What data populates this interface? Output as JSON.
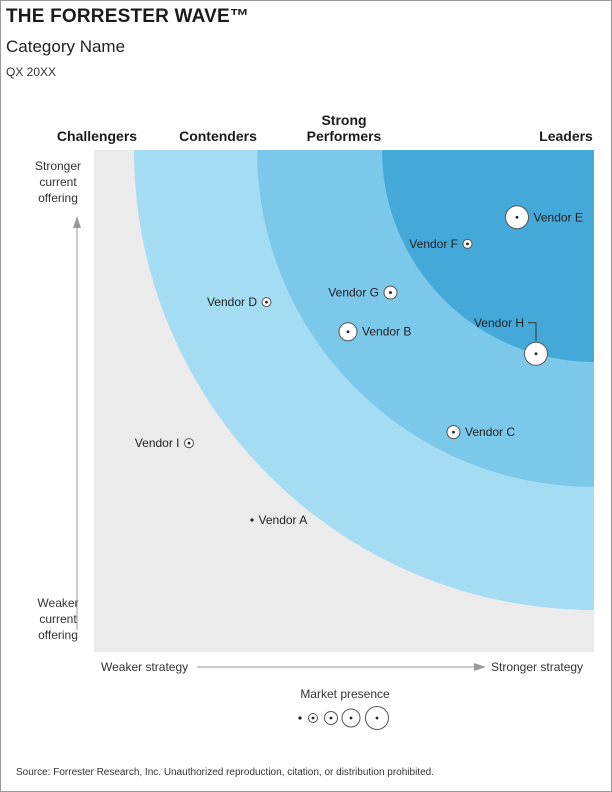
{
  "header": {
    "brand": "THE FORRESTER WAVE™",
    "category": "Category Name",
    "period": "QX 20XX"
  },
  "categories": {
    "challengers": "Challengers",
    "contenders": "Contenders",
    "strong_performers_line1": "Strong",
    "strong_performers_line2": "Performers",
    "leaders": "Leaders"
  },
  "axes": {
    "y_top": [
      "Stronger",
      "current",
      "offering"
    ],
    "y_bottom": [
      "Weaker",
      "current",
      "offering"
    ],
    "x_left": "Weaker strategy",
    "x_right": "Stronger strategy"
  },
  "legend": {
    "title": "Market presence",
    "levels": [
      1,
      2,
      3,
      4,
      5
    ]
  },
  "source": "Source: Forrester Research, Inc. Unauthorized reproduction, citation, or distribution prohibited.",
  "colors": {
    "plot_bg": "#ebebeb",
    "contenders": "#a3dcf3",
    "strong_performers": "#7cc8eb",
    "leaders": "#44a8d8",
    "axis": "#9a9a9a"
  },
  "chart_data": {
    "type": "scatter",
    "xlabel": "Strategy",
    "ylabel": "Current offering",
    "xlim": [
      0,
      100
    ],
    "ylim": [
      0,
      100
    ],
    "size_label": "Market presence",
    "points": [
      {
        "name": "Vendor E",
        "x": 84.6,
        "y": 86.6,
        "size": 5
      },
      {
        "name": "Vendor F",
        "x": 74.7,
        "y": 81.3,
        "size": 2
      },
      {
        "name": "Vendor G",
        "x": 59.3,
        "y": 71.6,
        "size": 3
      },
      {
        "name": "Vendor H",
        "x": 88.4,
        "y": 59.4,
        "size": 5
      },
      {
        "name": "Vendor B",
        "x": 50.8,
        "y": 63.8,
        "size": 4
      },
      {
        "name": "Vendor D",
        "x": 34.5,
        "y": 69.7,
        "size": 2
      },
      {
        "name": "Vendor C",
        "x": 71.9,
        "y": 43.8,
        "size": 3
      },
      {
        "name": "Vendor I",
        "x": 19.0,
        "y": 41.6,
        "size": 2
      },
      {
        "name": "Vendor A",
        "x": 31.6,
        "y": 26.3,
        "size": 1
      }
    ]
  }
}
